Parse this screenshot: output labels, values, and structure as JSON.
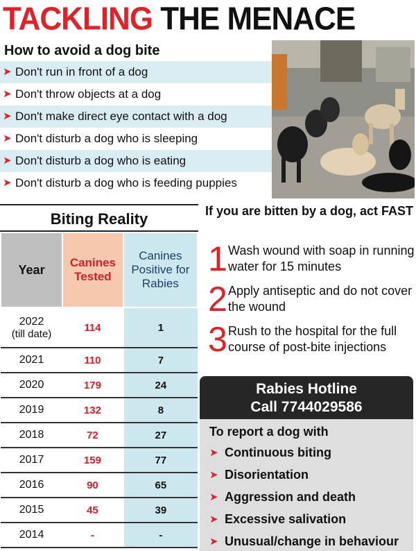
{
  "headline": {
    "part1": "TACKLING",
    "part2": "THE MENACE"
  },
  "avoid": {
    "title": "How to avoid a dog bite",
    "tips": [
      "Don't run in front of a dog",
      "Don't throw objects at a dog",
      "Don't make direct eye contact with a dog",
      "Don't disturb a dog who is sleeping",
      "Don't disturb a dog who is eating",
      "Don't disturb a dog who is feeding puppies"
    ]
  },
  "reality": {
    "title": "Biting Reality",
    "headers": {
      "year": "Year",
      "tested": "Canines Tested",
      "positive": "Canines Positive for Rabies"
    },
    "rows": [
      {
        "year": "2022",
        "year_note": "(till date)",
        "tested": "114",
        "positive": "1"
      },
      {
        "year": "2021",
        "year_note": "",
        "tested": "110",
        "positive": "7"
      },
      {
        "year": "2020",
        "year_note": "",
        "tested": "179",
        "positive": "24"
      },
      {
        "year": "2019",
        "year_note": "",
        "tested": "132",
        "positive": "8"
      },
      {
        "year": "2018",
        "year_note": "",
        "tested": "72",
        "positive": "27"
      },
      {
        "year": "2017",
        "year_note": "",
        "tested": "159",
        "positive": "77"
      },
      {
        "year": "2016",
        "year_note": "",
        "tested": "90",
        "positive": "65"
      },
      {
        "year": "2015",
        "year_note": "",
        "tested": "45",
        "positive": "39"
      },
      {
        "year": "2014",
        "year_note": "",
        "tested": "-",
        "positive": "-"
      }
    ]
  },
  "bitten": {
    "title": "If you are bitten by a dog, act FAST",
    "steps": [
      {
        "num": "1",
        "text": "Wash wound with soap in running water for 15 minutes"
      },
      {
        "num": "2",
        "text": "Apply antiseptic and do not cover the wound"
      },
      {
        "num": "3",
        "text": "Rush to the hospital for the full course of post-bite injections"
      }
    ]
  },
  "hotline": {
    "title": "Rabies Hotline",
    "call": "Call 7744029586"
  },
  "report": {
    "title": "To report a dog with",
    "items": [
      "Continuous biting",
      "Disorientation",
      "Aggression and death",
      "Excessive salivation",
      "Unusual/change in behaviour"
    ]
  },
  "colors": {
    "accent": "#e02128",
    "tip_shade": "#d8ecf2",
    "tested_bg": "#f6c9ae",
    "positive_bg": "#cce7ee",
    "hotline_bg": "#262626",
    "report_bg": "#dedede"
  },
  "icons": {
    "bullet": "red-arrow-icon"
  }
}
